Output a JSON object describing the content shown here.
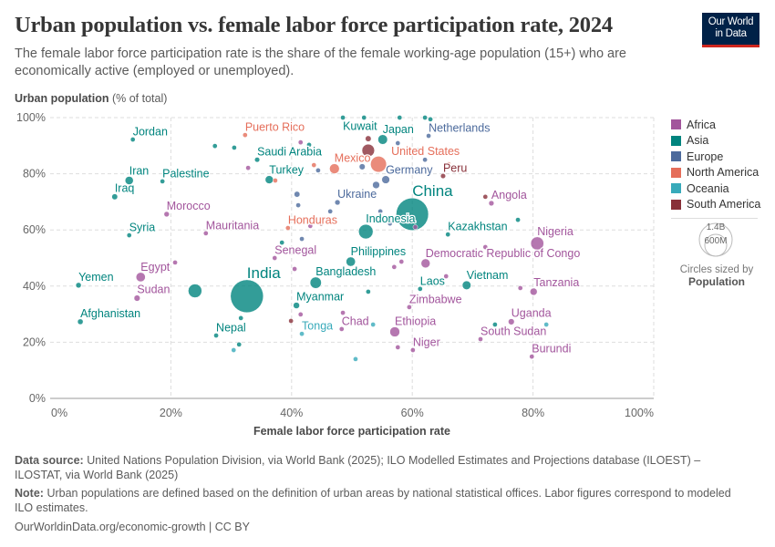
{
  "header": {
    "title": "Urban population vs. female labor force participation rate, 2024",
    "subtitle": "The female labor force participation rate is the share of the female working-age population (15+) who are economically active (employed or unemployed).",
    "logo_line1": "Our World",
    "logo_line2": "in Data"
  },
  "legend": {
    "regions": [
      {
        "name": "Africa",
        "color": "#a2559c"
      },
      {
        "name": "Asia",
        "color": "#00847e"
      },
      {
        "name": "Europe",
        "color": "#4c6a9c"
      },
      {
        "name": "North America",
        "color": "#e56e5a"
      },
      {
        "name": "Oceania",
        "color": "#38aaba"
      },
      {
        "name": "South America",
        "color": "#883039"
      }
    ],
    "size_large": "1.4B",
    "size_small": "600M",
    "size_caption": "Circles sized by",
    "size_variable": "Population"
  },
  "footer": {
    "source_label": "Data source:",
    "source_text": "United Nations Population Division, via World Bank (2025); ILO Modelled Estimates and Projections database (ILOEST) – ILOSTAT, via World Bank (2025)",
    "note_label": "Note:",
    "note_text": "Urban populations are defined based on the definition of urban areas by national statistical offices. Labor figures correspond to modeled ILO estimates.",
    "credit": "OurWorldinData.org/economic-growth | CC BY"
  },
  "chart_data": {
    "type": "scatter",
    "title": "Urban population vs. female labor force participation rate, 2024",
    "xlabel": "Female labor force participation rate",
    "ylabel_bold": "Urban population",
    "ylabel_unit": "(% of total)",
    "xlim": [
      0,
      100
    ],
    "ylim": [
      0,
      100
    ],
    "x_ticks": [
      "0%",
      "20%",
      "40%",
      "60%",
      "80%",
      "100%"
    ],
    "y_ticks": [
      "0%",
      "20%",
      "40%",
      "60%",
      "80%",
      "100%"
    ],
    "grid": true,
    "legend_position": "right",
    "size_variable": "Population (millions)",
    "points": [
      {
        "name": "Jordan",
        "x": 13.7,
        "y": 92.2,
        "region": "Asia",
        "pop_m": 11
      },
      {
        "name": "Puerto Rico",
        "x": 32.3,
        "y": 93.8,
        "region": "North America",
        "pop_m": 3
      },
      {
        "name": "Kuwait",
        "x": 48.5,
        "y": 100,
        "region": "Asia",
        "pop_m": 5
      },
      {
        "name": "Japan",
        "x": 55.1,
        "y": 92.2,
        "region": "Asia",
        "pop_m": 124
      },
      {
        "name": "Netherlands",
        "x": 62.7,
        "y": 93.5,
        "region": "Europe",
        "pop_m": 18
      },
      {
        "name": "Saudi Arabia",
        "x": 34.3,
        "y": 85.0,
        "region": "Asia",
        "pop_m": 34
      },
      {
        "name": "United States",
        "x": 54.4,
        "y": 83.4,
        "region": "North America",
        "pop_m": 340
      },
      {
        "name": "Mexico",
        "x": 47.1,
        "y": 81.8,
        "region": "North America",
        "pop_m": 130
      },
      {
        "name": "Iran",
        "x": 13.1,
        "y": 77.6,
        "region": "Asia",
        "pop_m": 91
      },
      {
        "name": "Palestine",
        "x": 18.6,
        "y": 77.3,
        "region": "Asia",
        "pop_m": 5
      },
      {
        "name": "Turkey",
        "x": 36.3,
        "y": 77.9,
        "region": "Asia",
        "pop_m": 87
      },
      {
        "name": "Germany",
        "x": 55.6,
        "y": 77.9,
        "region": "Europe",
        "pop_m": 84
      },
      {
        "name": "Peru",
        "x": 65.1,
        "y": 79.2,
        "region": "South America",
        "pop_m": 34
      },
      {
        "name": "Iraq",
        "x": 10.7,
        "y": 71.8,
        "region": "Asia",
        "pop_m": 46
      },
      {
        "name": "Ukraine",
        "x": 47.6,
        "y": 69.8,
        "region": "Europe",
        "pop_m": 38
      },
      {
        "name": "China",
        "x": 60.0,
        "y": 65.6,
        "region": "Asia",
        "pop_m": 1410
      },
      {
        "name": "Angola",
        "x": 73.1,
        "y": 69.5,
        "region": "Africa",
        "pop_m": 37
      },
      {
        "name": "Morocco",
        "x": 19.3,
        "y": 65.6,
        "region": "Africa",
        "pop_m": 38
      },
      {
        "name": "Indonesia",
        "x": 52.3,
        "y": 59.4,
        "region": "Asia",
        "pop_m": 283
      },
      {
        "name": "Kazakhstan",
        "x": 65.9,
        "y": 58.4,
        "region": "Asia",
        "pop_m": 20
      },
      {
        "name": "Mauritania",
        "x": 25.8,
        "y": 58.8,
        "region": "Africa",
        "pop_m": 5
      },
      {
        "name": "Honduras",
        "x": 39.4,
        "y": 60.7,
        "region": "North America",
        "pop_m": 10
      },
      {
        "name": "Syria",
        "x": 13.1,
        "y": 58.1,
        "region": "Asia",
        "pop_m": 24
      },
      {
        "name": "Nigeria",
        "x": 80.7,
        "y": 55.2,
        "region": "Africa",
        "pop_m": 230
      },
      {
        "name": "Senegal",
        "x": 37.2,
        "y": 50.0,
        "region": "Africa",
        "pop_m": 18
      },
      {
        "name": "Philippines",
        "x": 49.8,
        "y": 48.7,
        "region": "Asia",
        "pop_m": 116
      },
      {
        "name": "Democratic Republic of Congo",
        "x": 62.2,
        "y": 48.1,
        "region": "Africa",
        "pop_m": 109
      },
      {
        "name": "Egypt",
        "x": 15.0,
        "y": 43.2,
        "region": "Africa",
        "pop_m": 116
      },
      {
        "name": "Bangladesh",
        "x": 44.0,
        "y": 41.2,
        "region": "Asia",
        "pop_m": 173
      },
      {
        "name": "India",
        "x": 32.6,
        "y": 36.4,
        "region": "Asia",
        "pop_m": 1450
      },
      {
        "name": "Yemen",
        "x": 4.7,
        "y": 40.3,
        "region": "Asia",
        "pop_m": 40
      },
      {
        "name": "Vietnam",
        "x": 69.0,
        "y": 40.3,
        "region": "Asia",
        "pop_m": 101
      },
      {
        "name": "Laos",
        "x": 61.3,
        "y": 39.0,
        "region": "Asia",
        "pop_m": 8
      },
      {
        "name": "Tanzania",
        "x": 80.1,
        "y": 38.0,
        "region": "Africa",
        "pop_m": 69
      },
      {
        "name": "Sudan",
        "x": 14.4,
        "y": 35.7,
        "region": "Africa",
        "pop_m": 50
      },
      {
        "name": "Myanmar",
        "x": 40.8,
        "y": 33.1,
        "region": "Asia",
        "pop_m": 54
      },
      {
        "name": "Zimbabwe",
        "x": 59.5,
        "y": 32.5,
        "region": "Africa",
        "pop_m": 17
      },
      {
        "name": "Afghanistan",
        "x": 5.0,
        "y": 27.3,
        "region": "Asia",
        "pop_m": 42
      },
      {
        "name": "Uganda",
        "x": 76.4,
        "y": 27.3,
        "region": "Africa",
        "pop_m": 50
      },
      {
        "name": "Ethiopia",
        "x": 57.1,
        "y": 23.7,
        "region": "Africa",
        "pop_m": 132
      },
      {
        "name": "Chad",
        "x": 48.3,
        "y": 24.7,
        "region": "Africa",
        "pop_m": 20
      },
      {
        "name": "Tonga",
        "x": 41.7,
        "y": 23.0,
        "region": "Oceania",
        "pop_m": 0.1
      },
      {
        "name": "Nepal",
        "x": 27.5,
        "y": 22.4,
        "region": "Asia",
        "pop_m": 30
      },
      {
        "name": "South Sudan",
        "x": 71.3,
        "y": 21.1,
        "region": "Africa",
        "pop_m": 12
      },
      {
        "name": "Niger",
        "x": 60.1,
        "y": 17.2,
        "region": "Africa",
        "pop_m": 27
      },
      {
        "name": "Burundi",
        "x": 79.8,
        "y": 14.9,
        "region": "Africa",
        "pop_m": 14
      },
      {
        "x": 24.0,
        "y": 38.3,
        "region": "Asia",
        "pop_m": 251
      },
      {
        "x": 52.7,
        "y": 88.3,
        "region": "South America",
        "pop_m": 212
      },
      {
        "x": 52.7,
        "y": 92.5,
        "region": "South America",
        "pop_m": 46
      },
      {
        "x": 52.0,
        "y": 100,
        "region": "Asia",
        "pop_m": 6
      },
      {
        "x": 57.9,
        "y": 100,
        "region": "Asia",
        "pop_m": 3
      },
      {
        "x": 62.1,
        "y": 100,
        "region": "Asia",
        "pop_m": 2
      },
      {
        "x": 63.0,
        "y": 99.4,
        "region": "Asia",
        "pop_m": 3
      },
      {
        "x": 27.3,
        "y": 89.9,
        "region": "Asia",
        "pop_m": 4
      },
      {
        "x": 30.5,
        "y": 89.3,
        "region": "Asia",
        "pop_m": 3
      },
      {
        "x": 41.5,
        "y": 91.2,
        "region": "Africa",
        "pop_m": 7
      },
      {
        "x": 42.9,
        "y": 90.3,
        "region": "Asia",
        "pop_m": 2
      },
      {
        "x": 32.8,
        "y": 82.1,
        "region": "Africa",
        "pop_m": 6
      },
      {
        "x": 43.7,
        "y": 83.1,
        "region": "North America",
        "pop_m": 4
      },
      {
        "x": 44.4,
        "y": 81.2,
        "region": "Europe",
        "pop_m": 5
      },
      {
        "x": 51.7,
        "y": 82.5,
        "region": "Europe",
        "pop_m": 48
      },
      {
        "x": 37.3,
        "y": 77.6,
        "region": "North America",
        "pop_m": 3
      },
      {
        "x": 40.9,
        "y": 72.7,
        "region": "Europe",
        "pop_m": 45
      },
      {
        "x": 41.1,
        "y": 68.8,
        "region": "Europe",
        "pop_m": 6
      },
      {
        "x": 43.1,
        "y": 61.4,
        "region": "Africa",
        "pop_m": 3
      },
      {
        "x": 44.9,
        "y": 62.3,
        "region": "South America",
        "pop_m": 8
      },
      {
        "x": 46.4,
        "y": 66.6,
        "region": "Europe",
        "pop_m": 9
      },
      {
        "x": 38.4,
        "y": 55.5,
        "region": "Asia",
        "pop_m": 4
      },
      {
        "x": 41.7,
        "y": 56.8,
        "region": "Europe",
        "pop_m": 5
      },
      {
        "x": 40.5,
        "y": 46.1,
        "region": "Africa",
        "pop_m": 4
      },
      {
        "x": 20.7,
        "y": 48.4,
        "region": "Africa",
        "pop_m": 3
      },
      {
        "x": 41.5,
        "y": 29.9,
        "region": "Africa",
        "pop_m": 5
      },
      {
        "x": 39.9,
        "y": 27.6,
        "region": "South America",
        "pop_m": 1
      },
      {
        "x": 48.5,
        "y": 30.5,
        "region": "Africa",
        "pop_m": 6
      },
      {
        "x": 53.5,
        "y": 26.3,
        "region": "Oceania",
        "pop_m": 1
      },
      {
        "x": 50.6,
        "y": 14.0,
        "region": "Oceania",
        "pop_m": 1
      },
      {
        "x": 57.6,
        "y": 18.2,
        "region": "Africa",
        "pop_m": 7
      },
      {
        "x": 31.6,
        "y": 28.6,
        "region": "Asia",
        "pop_m": 2
      },
      {
        "x": 31.3,
        "y": 19.2,
        "region": "Asia",
        "pop_m": 21
      },
      {
        "x": 30.4,
        "y": 17.2,
        "region": "Oceania",
        "pop_m": 1
      },
      {
        "x": 52.7,
        "y": 38.0,
        "region": "Asia",
        "pop_m": 3
      },
      {
        "x": 65.6,
        "y": 43.5,
        "region": "Africa",
        "pop_m": 9
      },
      {
        "x": 77.9,
        "y": 39.3,
        "region": "Africa",
        "pop_m": 14
      },
      {
        "x": 73.7,
        "y": 26.3,
        "region": "Asia",
        "pop_m": 17
      },
      {
        "x": 82.2,
        "y": 26.3,
        "region": "Oceania",
        "pop_m": 10
      },
      {
        "x": 72.1,
        "y": 71.8,
        "region": "South America",
        "pop_m": 2
      },
      {
        "x": 77.5,
        "y": 63.6,
        "region": "Asia",
        "pop_m": 3
      },
      {
        "x": 72.1,
        "y": 53.9,
        "region": "Africa",
        "pop_m": 6
      },
      {
        "x": 66.0,
        "y": 83.4,
        "region": "North America",
        "pop_m": 1
      },
      {
        "x": 62.1,
        "y": 85.0,
        "region": "Europe",
        "pop_m": 5
      },
      {
        "x": 57.6,
        "y": 90.9,
        "region": "Europe",
        "pop_m": 9
      },
      {
        "x": 60.9,
        "y": 88.3,
        "region": "Asia",
        "pop_m": 3
      },
      {
        "x": 56.3,
        "y": 62.3,
        "region": "Europe",
        "pop_m": 10
      },
      {
        "x": 54.7,
        "y": 66.6,
        "region": "Europe",
        "pop_m": 19
      },
      {
        "x": 58.2,
        "y": 48.7,
        "region": "Africa",
        "pop_m": 13
      },
      {
        "x": 57.0,
        "y": 46.8,
        "region": "Africa",
        "pop_m": 10
      },
      {
        "x": 53.5,
        "y": 72.5,
        "region": "Europe",
        "pop_m": 60
      },
      {
        "x": 54.0,
        "y": 76.0,
        "region": "Europe",
        "pop_m": 68
      },
      {
        "x": 60.5,
        "y": 61.0,
        "region": "Africa",
        "pop_m": 30
      }
    ]
  }
}
